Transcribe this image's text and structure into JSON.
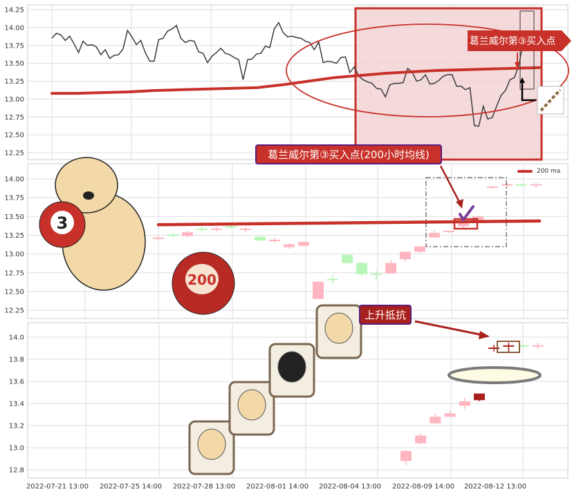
{
  "chart_data": [
    {
      "type": "line",
      "panel": "top",
      "ylim": [
        12.2,
        14.3
      ],
      "yticks": [
        "14.25",
        "14.00",
        "13.75",
        "13.50",
        "13.25",
        "13.00",
        "12.75",
        "12.50",
        "12.25"
      ],
      "grid": true,
      "series": [
        {
          "color": "#3a3a3a",
          "values": [
            13.85,
            13.92,
            13.9,
            13.82,
            13.88,
            13.77,
            13.65,
            13.81,
            13.75,
            13.76,
            13.73,
            13.62,
            13.69,
            13.57,
            13.61,
            13.62,
            13.7,
            13.96,
            13.87,
            13.76,
            13.82,
            13.65,
            13.53,
            13.53,
            13.83,
            13.85,
            13.95,
            13.98,
            14.03,
            13.85,
            13.79,
            13.82,
            13.81,
            13.66,
            13.64,
            13.51,
            13.6,
            13.65,
            13.71,
            13.64,
            13.62,
            13.58,
            13.55,
            13.27,
            13.55,
            13.56,
            13.63,
            13.64,
            13.74,
            13.72,
            13.98,
            14.07,
            13.93,
            13.87,
            13.88,
            13.86,
            13.85,
            13.81,
            13.79,
            13.69,
            13.8,
            13.51,
            13.53,
            13.52,
            13.5,
            13.58,
            13.59,
            13.37,
            13.45,
            13.32,
            13.27,
            13.24,
            13.22,
            13.15,
            13.14,
            13.03,
            13.2,
            13.22,
            13.22,
            13.23,
            13.43,
            13.38,
            13.25,
            13.27,
            13.34,
            13.21,
            13.22,
            13.26,
            13.32,
            13.34,
            13.34,
            13.18,
            13.18,
            13.13,
            13.16,
            12.63,
            12.62,
            12.9,
            12.72,
            12.74,
            12.9,
            13.05,
            13.12,
            13.27,
            13.3,
            13.47,
            13.8,
            13.95
          ]
        },
        {
          "color": "#c8312a",
          "values": [
            13.08,
            13.08,
            13.09,
            13.1,
            13.12,
            13.13,
            13.14,
            13.15,
            13.16,
            13.2,
            13.25,
            13.3,
            13.33,
            13.36,
            13.38,
            13.4,
            13.41,
            13.42,
            13.43,
            13.44
          ]
        }
      ]
    },
    {
      "type": "candlestick",
      "panel": "middle",
      "ylim": [
        12.2,
        14.18
      ],
      "yticks": [
        "14.00",
        "13.75",
        "13.50",
        "13.25",
        "13.00",
        "12.75",
        "12.50",
        "12.25"
      ],
      "grid": true,
      "legend": {
        "label": "200 ma",
        "placement": "top-right"
      },
      "ma_values": [
        13.39,
        13.44
      ],
      "candles": [
        {
          "o": 13.21,
          "c": 13.21,
          "h": 13.24,
          "l": 13.18,
          "dir": "up"
        },
        {
          "o": 13.25,
          "c": 13.25,
          "h": 13.28,
          "l": 13.22,
          "dir": "down"
        },
        {
          "o": 13.24,
          "c": 13.29,
          "h": 13.31,
          "l": 13.22,
          "dir": "up"
        },
        {
          "o": 13.33,
          "c": 13.33,
          "h": 13.36,
          "l": 13.3,
          "dir": "down"
        },
        {
          "o": 13.33,
          "c": 13.33,
          "h": 13.36,
          "l": 13.3,
          "dir": "up"
        },
        {
          "o": 13.37,
          "c": 13.35,
          "h": 13.38,
          "l": 13.34,
          "dir": "down"
        },
        {
          "o": 13.33,
          "c": 13.33,
          "h": 13.36,
          "l": 13.29,
          "dir": "up"
        },
        {
          "o": 13.23,
          "c": 13.18,
          "h": 13.24,
          "l": 13.17,
          "dir": "down"
        },
        {
          "o": 13.18,
          "c": 13.18,
          "h": 13.21,
          "l": 13.15,
          "dir": "up"
        },
        {
          "o": 13.09,
          "c": 13.13,
          "h": 13.14,
          "l": 13.07,
          "dir": "up"
        },
        {
          "o": 13.11,
          "c": 13.16,
          "h": 13.17,
          "l": 13.1,
          "dir": "up"
        },
        {
          "o": 12.4,
          "c": 12.63,
          "h": 12.64,
          "l": 12.4,
          "dir": "up"
        },
        {
          "o": 12.66,
          "c": 12.66,
          "h": 12.72,
          "l": 12.6,
          "dir": "down"
        },
        {
          "o": 12.99,
          "c": 12.88,
          "h": 12.99,
          "l": 12.86,
          "dir": "down"
        },
        {
          "o": 12.88,
          "c": 12.73,
          "h": 12.89,
          "l": 12.7,
          "dir": "down"
        },
        {
          "o": 12.73,
          "c": 12.73,
          "h": 12.78,
          "l": 12.65,
          "dir": "down"
        },
        {
          "o": 12.74,
          "c": 12.88,
          "h": 12.92,
          "l": 12.74,
          "dir": "up"
        },
        {
          "o": 12.93,
          "c": 13.03,
          "h": 13.03,
          "l": 12.89,
          "dir": "up"
        },
        {
          "o": 13.03,
          "c": 13.1,
          "h": 13.1,
          "l": 13.01,
          "dir": "up"
        },
        {
          "o": 13.22,
          "c": 13.28,
          "h": 13.31,
          "l": 13.22,
          "dir": "up"
        },
        {
          "o": 13.29,
          "c": 13.3,
          "h": 13.31,
          "l": 13.28,
          "dir": "up"
        },
        {
          "o": 13.37,
          "c": 13.41,
          "h": 13.42,
          "l": 13.35,
          "dir": "up",
          "highlight": true
        },
        {
          "o": 13.43,
          "c": 13.5,
          "h": 13.5,
          "l": 13.42,
          "dir": "up"
        },
        {
          "o": 13.89,
          "c": 13.89,
          "h": 13.91,
          "l": 13.87,
          "dir": "up"
        },
        {
          "o": 13.92,
          "c": 13.92,
          "h": 13.95,
          "l": 13.88,
          "dir": "up"
        },
        {
          "o": 13.92,
          "c": 13.92,
          "h": 13.94,
          "l": 13.9,
          "dir": "down"
        },
        {
          "o": 13.92,
          "c": 13.92,
          "h": 13.95,
          "l": 13.88,
          "dir": "up"
        }
      ]
    },
    {
      "type": "candlestick",
      "panel": "bottom",
      "ylim": [
        12.73,
        14.13
      ],
      "yticks": [
        "14.0",
        "13.8",
        "13.6",
        "13.4",
        "13.2",
        "13.0",
        "12.8"
      ],
      "grid": true,
      "candles": [
        {
          "o": 12.88,
          "c": 12.97,
          "h": 12.98,
          "l": 12.84,
          "dir": "up"
        },
        {
          "o": 13.04,
          "c": 13.11,
          "h": 13.13,
          "l": 13.03,
          "dir": "up"
        },
        {
          "o": 13.22,
          "c": 13.28,
          "h": 13.31,
          "l": 13.22,
          "dir": "up"
        },
        {
          "o": 13.28,
          "c": 13.31,
          "h": 13.33,
          "l": 13.28,
          "dir": "up"
        },
        {
          "o": 13.38,
          "c": 13.42,
          "h": 13.45,
          "l": 13.35,
          "dir": "up"
        },
        {
          "o": 13.43,
          "c": 13.49,
          "h": 13.49,
          "l": 13.42,
          "dir": "up",
          "dark": true
        },
        {
          "o": 13.9,
          "c": 13.9,
          "h": 13.93,
          "l": 13.87,
          "dir": "up",
          "dark": true
        },
        {
          "o": 13.92,
          "c": 13.92,
          "h": 13.95,
          "l": 13.86,
          "dir": "up",
          "dark": true
        },
        {
          "o": 13.92,
          "c": 13.92,
          "h": 13.94,
          "l": 13.9,
          "dir": "down"
        },
        {
          "o": 13.92,
          "c": 13.92,
          "h": 13.95,
          "l": 13.89,
          "dir": "up"
        }
      ]
    }
  ],
  "xaxis": {
    "tick_labels": [
      "2022-07-21 13:00",
      "2022-07-25 14:00",
      "2022-07-28 13:00",
      "2022-08-01 14:00",
      "2022-08-04 13:00",
      "2022-08-09 14:00",
      "2022-08-12 13:00"
    ]
  },
  "annotations": {
    "top_callout": "葛兰威尔第③买入点",
    "middle_callout": "葛兰威尔第③买入点(200小时均线)",
    "bottom_callout": "上升抵抗",
    "ball_3": "3",
    "ball_200": "200"
  },
  "colors": {
    "up": "#ffb6c1",
    "down": "#b8f5b8",
    "ma": "#c8312a",
    "callout": "#c8312a",
    "callout_border": "#5a1a7a",
    "shade": "#f1cdd0",
    "dark_candle": "#a8201c"
  }
}
